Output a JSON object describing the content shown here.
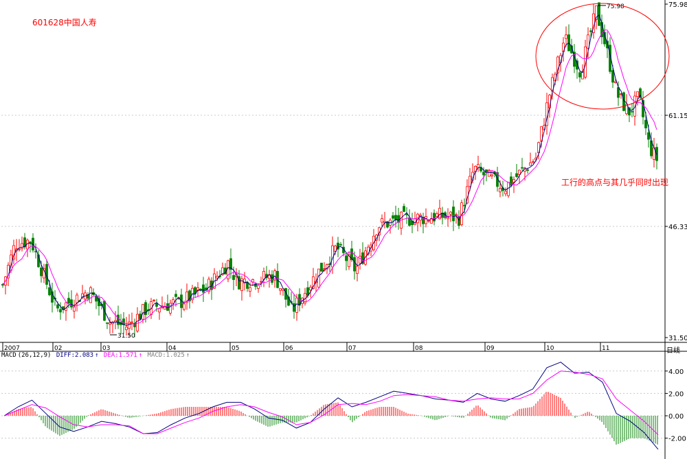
{
  "stock": {
    "title": "601628中国人寿",
    "annotation": "工行的高点与其几乎同时出现",
    "period_label": "日线"
  },
  "colors": {
    "up": "#ff0000",
    "down": "#008000",
    "ma_short": "#000080",
    "ma_long": "#ff00ff",
    "grid": "#c8c8c8",
    "circle": "#ff0000"
  },
  "macd": {
    "name": "MACD",
    "params": "(26,12,9)",
    "diff_label": "DIFF:2.083",
    "dea_label": "DEA:1.571",
    "macd_label": "MACD:1.025",
    "arrow": "↑"
  },
  "chart_data": [
    {
      "type": "candlestick",
      "title": "601628中国人寿",
      "ylim": [
        31.5,
        75.98
      ],
      "y_ticks": [
        "75.98",
        "61.15",
        "46.33",
        "31.50"
      ],
      "x_ticks": [
        "2007",
        "02",
        "03",
        "04",
        "05",
        "06",
        "07",
        "08",
        "09",
        "10",
        "11"
      ],
      "price_labels": {
        "high": "75.98",
        "low": "31.50"
      },
      "grid": true,
      "monthly_closes": [
        {
          "month": "2007-01",
          "close": 44.5
        },
        {
          "month": "02",
          "close": 35.2
        },
        {
          "month": "03",
          "close": 33.6
        },
        {
          "month": "04",
          "close": 37.4
        },
        {
          "month": "05",
          "close": 39.5
        },
        {
          "month": "06",
          "close": 36.2
        },
        {
          "month": "07",
          "close": 45.0
        },
        {
          "month": "08",
          "close": 47.3
        },
        {
          "month": "09",
          "close": 54.0
        },
        {
          "month": "10",
          "close": 71.5
        },
        {
          "month": "11",
          "close": 65.0
        },
        {
          "month": "12",
          "close": 54.0
        }
      ]
    },
    {
      "type": "line+bar",
      "title": "MACD",
      "y_ticks": [
        "4.00",
        "2.00",
        "0.00",
        "-2.00"
      ],
      "ylim": [
        -3.6,
        5.0
      ],
      "series": [
        {
          "name": "DIFF",
          "values": [
            0.0,
            0.8,
            1.4,
            0.2,
            -1.0,
            -1.4,
            -1.0,
            -0.5,
            -0.7,
            -1.0,
            -1.6,
            -1.5,
            -0.8,
            -0.2,
            0.2,
            0.8,
            1.2,
            1.2,
            0.6,
            -0.2,
            -0.4,
            -1.1,
            -0.6,
            0.6,
            1.6,
            0.8,
            1.2,
            1.7,
            2.2,
            2.0,
            1.8,
            1.5,
            1.4,
            1.2,
            2.0,
            1.5,
            1.3,
            1.8,
            2.4,
            4.3,
            4.8,
            3.8,
            3.9,
            3.0,
            0.2,
            -0.5,
            -1.5,
            -3.0
          ]
        },
        {
          "name": "DEA",
          "values": [
            0.0,
            0.5,
            1.0,
            0.7,
            -0.1,
            -0.8,
            -1.0,
            -0.8,
            -0.8,
            -0.9,
            -1.6,
            -1.6,
            -1.1,
            -0.6,
            -0.2,
            0.4,
            0.8,
            1.0,
            0.8,
            0.3,
            -0.1,
            -0.8,
            -0.6,
            0.1,
            1.0,
            1.1,
            1.0,
            1.3,
            1.8,
            1.9,
            1.8,
            1.7,
            1.4,
            1.3,
            1.5,
            1.6,
            1.5,
            1.5,
            2.0,
            3.2,
            4.0,
            3.9,
            3.7,
            3.3,
            1.5,
            0.5,
            -0.5,
            -1.7
          ]
        }
      ]
    }
  ]
}
